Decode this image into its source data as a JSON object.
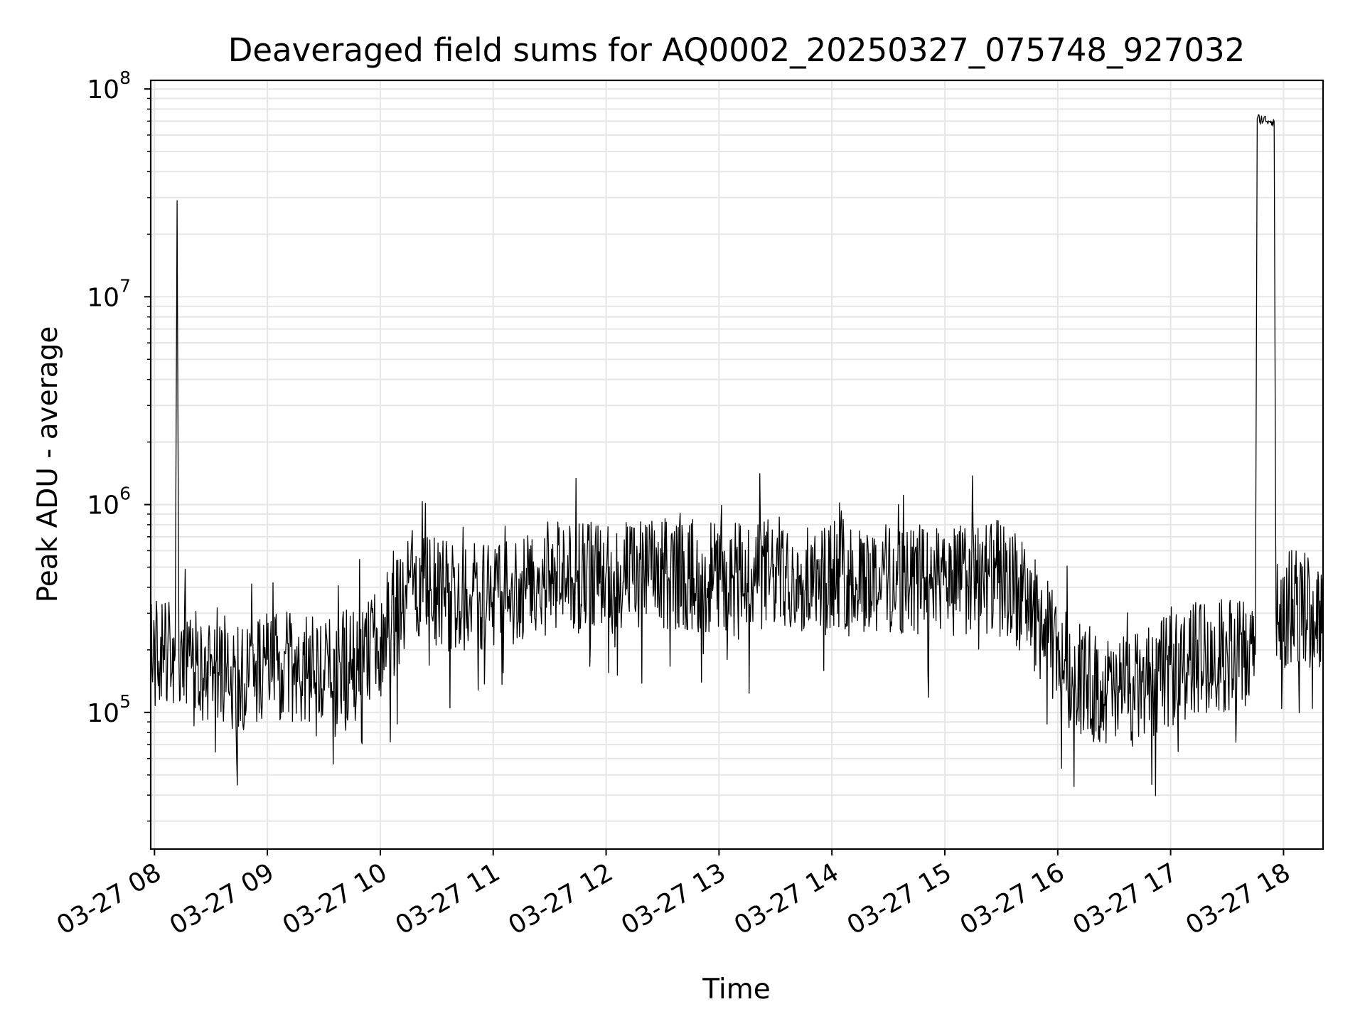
{
  "chart_data": {
    "type": "line",
    "title": "Deaveraged field sums for AQ0002_20250327_075748_927032",
    "xlabel": "Time",
    "ylabel": "Peak ADU - average",
    "y_scale": "log",
    "ylim": [
      22000,
      110000000
    ],
    "xlim": [
      "03-27 07:58",
      "03-27 18:21"
    ],
    "grid": true,
    "grid_minor_y": true,
    "line_color": "#000000",
    "x_tick_labels": [
      "03-27 08",
      "03-27 09",
      "03-27 10",
      "03-27 11",
      "03-27 12",
      "03-27 13",
      "03-27 14",
      "03-27 15",
      "03-27 16",
      "03-27 17",
      "03-27 18"
    ],
    "y_tick_labels": [
      "10^5",
      "10^6",
      "10^7",
      "10^8"
    ],
    "series": [
      {
        "x": [
          "03-27 07:58",
          "03-27 08:05",
          "03-27 08:11",
          "03-27 08:12",
          "03-27 08:13",
          "03-27 08:20",
          "03-27 08:30",
          "03-27 08:45",
          "03-27 09:00",
          "03-27 09:15",
          "03-27 09:30",
          "03-27 09:45",
          "03-27 10:00",
          "03-27 10:15",
          "03-27 10:30",
          "03-27 10:45",
          "03-27 11:00",
          "03-27 11:15",
          "03-27 11:30",
          "03-27 11:45",
          "03-27 12:00",
          "03-27 12:30",
          "03-27 13:00",
          "03-27 13:30",
          "03-27 14:00",
          "03-27 14:30",
          "03-27 15:00",
          "03-27 15:30",
          "03-27 15:45",
          "03-27 16:00",
          "03-27 16:15",
          "03-27 16:30",
          "03-27 16:45",
          "03-27 17:00",
          "03-27 17:15",
          "03-27 17:30",
          "03-27 17:45",
          "03-27 17:46",
          "03-27 17:55",
          "03-27 17:56",
          "03-27 18:05",
          "03-27 18:15",
          "03-27 18:21"
        ],
        "y": [
          200000,
          210000,
          190000,
          29000000,
          180000,
          170000,
          190000,
          160000,
          180000,
          170000,
          160000,
          180000,
          230000,
          420000,
          400000,
          380000,
          400000,
          420000,
          480000,
          480000,
          470000,
          490000,
          480000,
          500000,
          490000,
          470000,
          460000,
          480000,
          350000,
          200000,
          150000,
          130000,
          140000,
          170000,
          200000,
          200000,
          190000,
          72000000,
          70000000,
          300000,
          350000,
          320000,
          330000
        ]
      }
    ]
  }
}
